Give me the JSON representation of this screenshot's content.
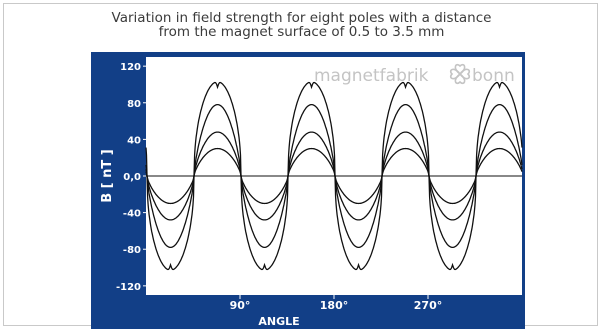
{
  "chart_data": {
    "type": "line",
    "title": "Variation in field strength for eight poles with a distance",
    "subtitle": "from the magnet surface of 0.5 to 3.5 mm",
    "xlabel": "ANGLE",
    "ylabel": "B [ nT ]",
    "xlim": [
      0,
      360
    ],
    "ylim": [
      -130,
      130
    ],
    "xticks": [
      {
        "value": 90,
        "label": "90°"
      },
      {
        "value": 180,
        "label": "180°"
      },
      {
        "value": 270,
        "label": "270°"
      }
    ],
    "yticks": [
      {
        "value": 120,
        "label": "120"
      },
      {
        "value": 80,
        "label": "80"
      },
      {
        "value": 40,
        "label": "40"
      },
      {
        "value": 0,
        "label": "0,0"
      },
      {
        "value": -40,
        "label": "-40"
      },
      {
        "value": -80,
        "label": "-80"
      },
      {
        "value": -120,
        "label": "-120"
      }
    ],
    "period_deg": 90,
    "zero_crossings_deg": [
      46,
      91,
      136,
      181,
      226,
      271,
      316
    ],
    "series": [
      {
        "peak": 103,
        "flat_top": true
      },
      {
        "peak": 78,
        "flat_top": false
      },
      {
        "peak": 48,
        "flat_top": false
      },
      {
        "peak": 30,
        "flat_top": false
      }
    ],
    "grid": false,
    "watermark": "magnetfabrik",
    "watermark2": "bonn",
    "colors": {
      "frame": "#123f87",
      "plot_bg": "#ffffff",
      "line": "#111111",
      "brand": "#c4c4c4"
    }
  }
}
